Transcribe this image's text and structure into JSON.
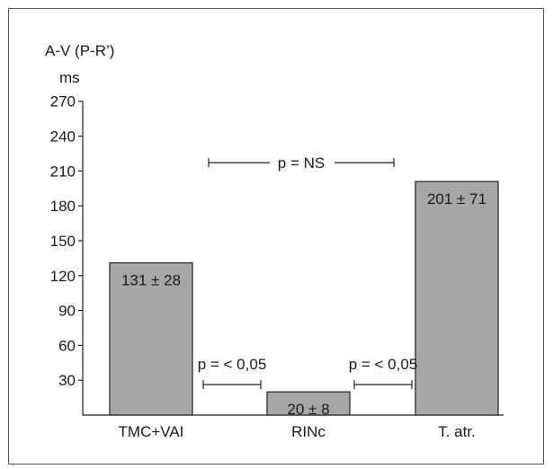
{
  "chart_data": {
    "type": "bar",
    "ylabel": "A-V (P-R’)",
    "yunit": "ms",
    "yticks": [
      30,
      60,
      90,
      120,
      150,
      180,
      210,
      240,
      270
    ],
    "yticks_labels": [
      "30",
      "60",
      "90",
      "120",
      "150",
      "180",
      "210",
      "240",
      "270"
    ],
    "ylim": [
      0,
      270
    ],
    "categories": [
      "TMC+VAI",
      "RINc",
      "T. atr."
    ],
    "values": [
      131,
      20,
      201
    ],
    "data_labels": [
      "131 ± 28",
      "20 ± 8",
      "201 ± 71"
    ],
    "bar_color": "#a6a6a9",
    "grid": false,
    "annotations": [
      {
        "text": "p = NS",
        "between": [
          "TMC+VAI",
          "T. atr."
        ]
      },
      {
        "text": "p = < 0,05",
        "between": [
          "TMC+VAI",
          "RINc"
        ]
      },
      {
        "text": "p = < 0,05",
        "between": [
          "RINc",
          "T. atr."
        ]
      }
    ]
  }
}
